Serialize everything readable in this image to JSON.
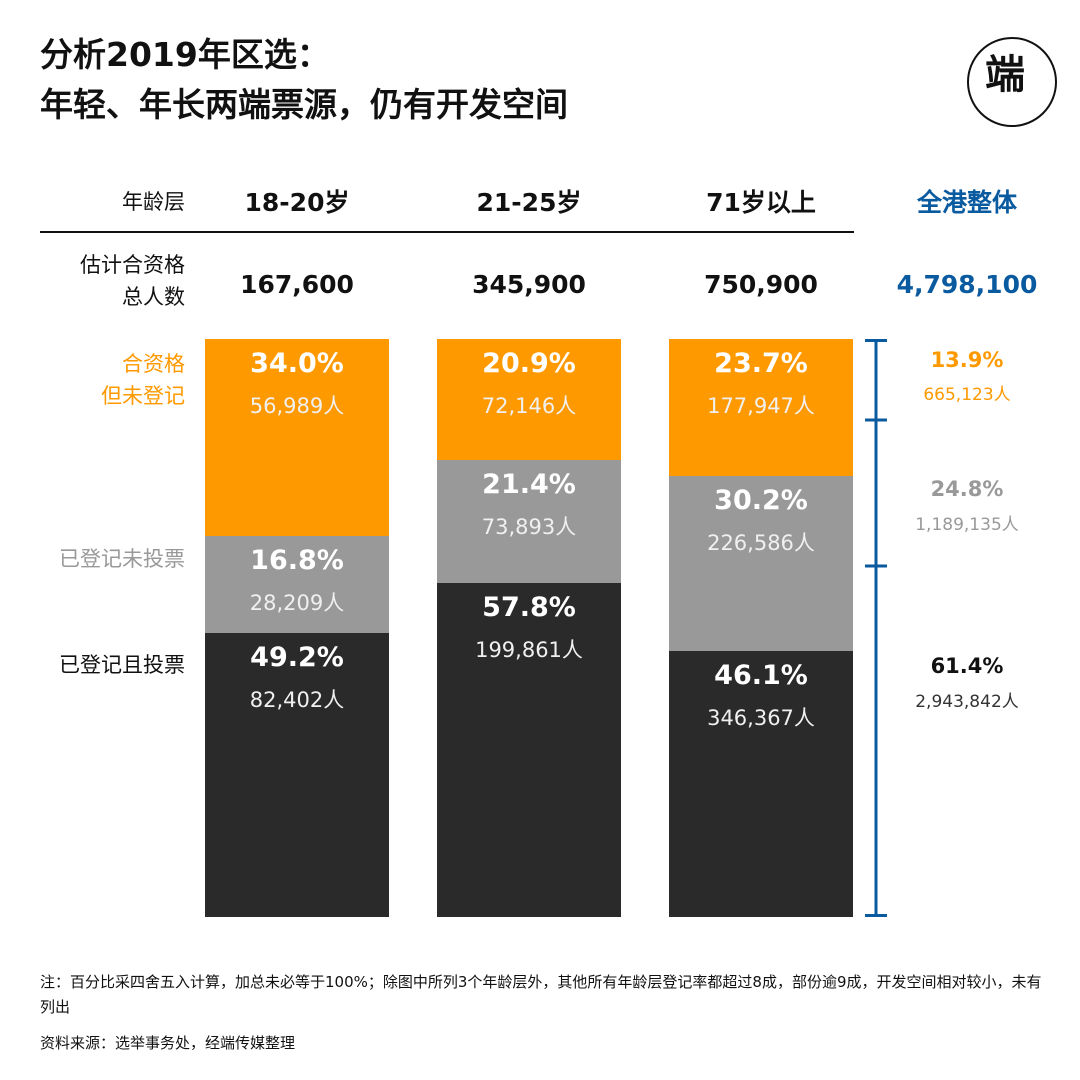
{
  "title_line1": "分析2019年区选：",
  "title_line2": "年轻、年长两端票源，仍有开发空间",
  "logo_text": "端",
  "header_label": "年龄层",
  "population_label_line1": "估计合资格",
  "population_label_line2": "总人数",
  "legend": {
    "unregistered_line1": "合资格",
    "unregistered_line2": "但未登记",
    "registered_not_voted": "已登记未投票",
    "registered_voted": "已登记且投票"
  },
  "colors": {
    "unregistered": "#ff9900",
    "registered_not_voted": "#999999",
    "registered_voted": "#2a2a2a",
    "overall": "#0a5aa0"
  },
  "total": {
    "label": "全港整体",
    "population": "4,798,100",
    "unregistered_pct": "13.9%",
    "unregistered_count": "665,123人",
    "not_voted_pct": "24.8%",
    "not_voted_count": "1,189,135人",
    "voted_pct": "61.4%",
    "voted_count": "2,943,842人"
  },
  "chart_data": {
    "type": "bar",
    "stacked": true,
    "categories": [
      "18-20岁",
      "21-25岁",
      "71岁以上"
    ],
    "populations": [
      "167,600",
      "345,900",
      "750,900"
    ],
    "series": [
      {
        "name": "合资格但未登记",
        "color": "#ff9900",
        "values": [
          34.0,
          20.9,
          23.7
        ],
        "labels": [
          "34.0%",
          "20.9%",
          "23.7%"
        ],
        "counts": [
          "56,989人",
          "72,146人",
          "177,947人"
        ]
      },
      {
        "name": "已登记未投票",
        "color": "#999999",
        "values": [
          16.8,
          21.4,
          30.2
        ],
        "labels": [
          "16.8%",
          "21.4%",
          "30.2%"
        ],
        "counts": [
          "28,209人",
          "73,893人",
          "226,586人"
        ]
      },
      {
        "name": "已登记且投票",
        "color": "#2a2a2a",
        "values": [
          49.2,
          57.8,
          46.1
        ],
        "labels": [
          "49.2%",
          "57.8%",
          "46.1%"
        ],
        "counts": [
          "82,402人",
          "199,861人",
          "346,367人"
        ]
      }
    ],
    "ylim": [
      0,
      100
    ]
  },
  "note": "注：百分比采四舍五入计算，加总未必等于100%；除图中所列3个年龄层外，其他所有年龄层登记率都超过8成，部份逾9成，开发空间相对较小，未有列出",
  "source": "资料来源：选举事务处，经端传媒整理"
}
